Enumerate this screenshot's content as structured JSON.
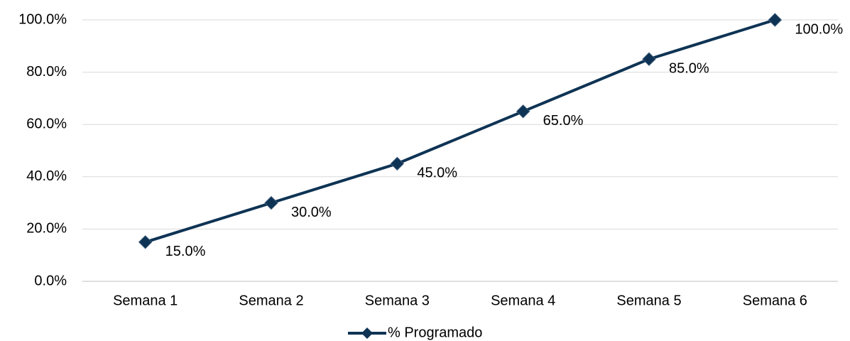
{
  "chart_data": {
    "type": "line",
    "categories": [
      "Semana 1",
      "Semana 2",
      "Semana 3",
      "Semana 4",
      "Semana 5",
      "Semana 6"
    ],
    "series": [
      {
        "name": "% Programado",
        "color": "#0e3354",
        "values": [
          15,
          30,
          45,
          65,
          85,
          100
        ],
        "value_labels": [
          "15.0%",
          "30.0%",
          "45.0%",
          "65.0%",
          "85.0%",
          "100.0%"
        ]
      }
    ],
    "ylim": [
      0,
      100
    ],
    "yticks": [
      {
        "value": 0,
        "label": "0.0%"
      },
      {
        "value": 20,
        "label": "20.0%"
      },
      {
        "value": 40,
        "label": "40.0%"
      },
      {
        "value": 60,
        "label": "60.0%"
      },
      {
        "value": 80,
        "label": "80.0%"
      },
      {
        "value": 100,
        "label": "100.0%"
      }
    ],
    "grid": true,
    "legend": "bottom"
  }
}
